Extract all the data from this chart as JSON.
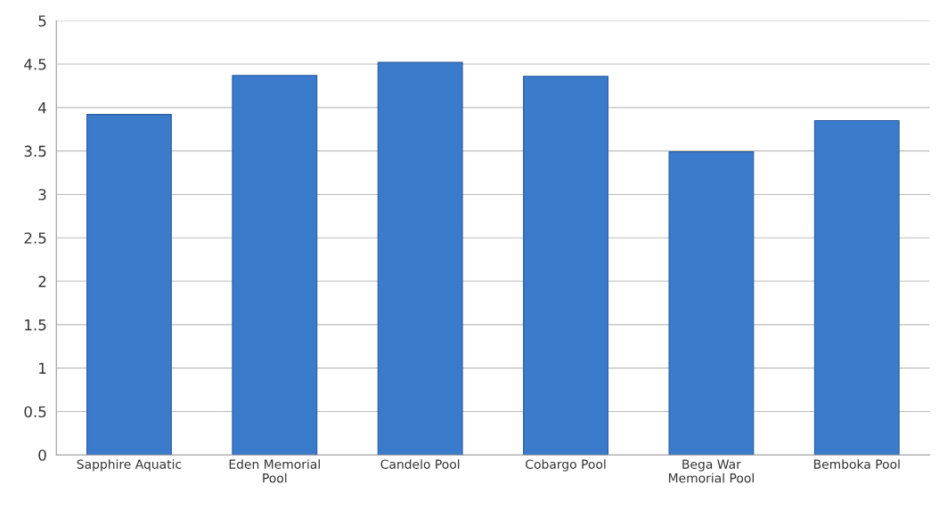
{
  "chart_data": {
    "type": "bar",
    "categories": [
      "Sapphire Aquatic",
      "Eden Memorial\nPool",
      "Candelo Pool",
      "Cobargo Pool",
      "Bega War\nMemorial Pool",
      "Bemboka Pool"
    ],
    "values": [
      3.92,
      4.37,
      4.52,
      4.36,
      3.49,
      3.85
    ],
    "color": "#3b7bcc",
    "ylim": [
      0,
      5
    ],
    "yticks": [
      0,
      {
        "value": 0.5,
        "label": "0.5"
      },
      1,
      {
        "value": 1.5,
        "label": "1.5"
      },
      2,
      {
        "value": 2.5,
        "label": "2.5"
      },
      3,
      {
        "value": 3.5,
        "label": "3.5"
      },
      4,
      {
        "value": 4.5,
        "label": "4.5"
      },
      5
    ],
    "grid": "y",
    "legend": false
  }
}
